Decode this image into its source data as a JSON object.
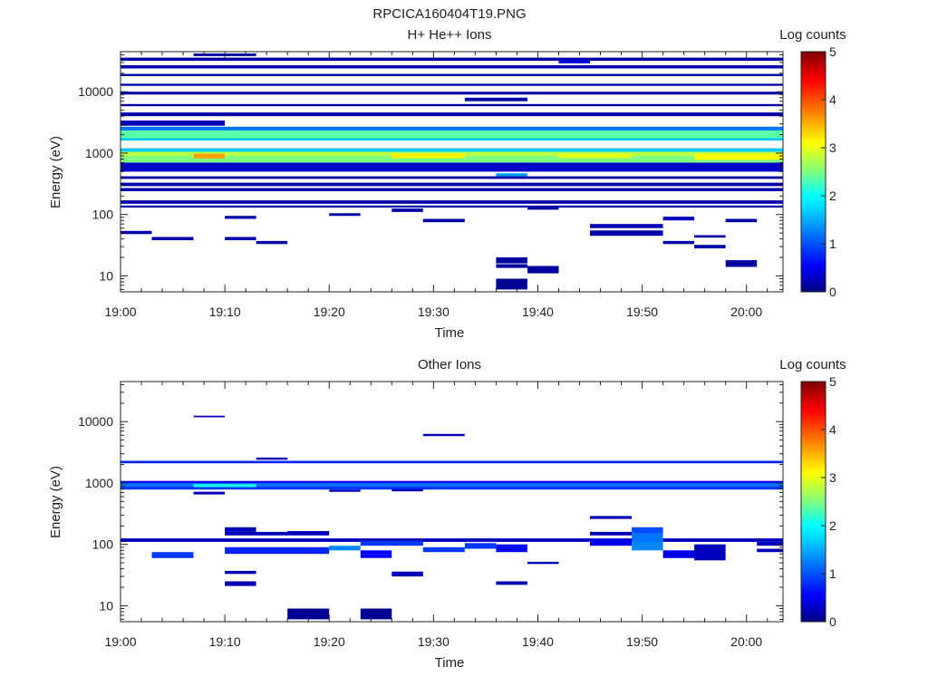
{
  "figure_title": "RPCICA160404T19.PNG",
  "colormap": {
    "stops": [
      "#00007f",
      "#0000ff",
      "#007fff",
      "#00ffff",
      "#7fff7f",
      "#ffff00",
      "#ff7f00",
      "#ff0000",
      "#7f0000"
    ]
  },
  "chart_data": [
    {
      "type": "heatmap",
      "title": "H+ He++ Ions",
      "xlabel": "Time",
      "ylabel": "Energy (eV)",
      "x_ticks": [
        "19:00",
        "19:10",
        "19:20",
        "19:30",
        "19:40",
        "19:50",
        "20:00"
      ],
      "y_ticks": [
        "10",
        "100",
        "1000",
        "10000"
      ],
      "y_scale": "log",
      "ylim": [
        5.5,
        45000
      ],
      "colorbar": {
        "label": "Log counts",
        "ticks": [
          "0",
          "1",
          "2",
          "3",
          "4",
          "5"
        ],
        "range": [
          0,
          5
        ]
      },
      "time_bins_start": [
        "19:00",
        "19:03",
        "19:07",
        "19:10",
        "19:13",
        "19:16",
        "19:20",
        "19:23",
        "19:26",
        "19:29",
        "19:33",
        "19:36",
        "19:39",
        "19:42",
        "19:45",
        "19:49",
        "19:52",
        "19:55",
        "19:58",
        "20:01"
      ]
    },
    {
      "type": "heatmap",
      "title": "Other Ions",
      "xlabel": "Time",
      "ylabel": "Energy (eV)",
      "x_ticks": [
        "19:00",
        "19:10",
        "19:20",
        "19:30",
        "19:40",
        "19:50",
        "20:00"
      ],
      "y_ticks": [
        "10",
        "100",
        "1000",
        "10000"
      ],
      "y_scale": "log",
      "ylim": [
        5.5,
        45000
      ],
      "colorbar": {
        "label": "Log counts",
        "ticks": [
          "0",
          "1",
          "2",
          "3",
          "4",
          "5"
        ],
        "range": [
          0,
          5
        ]
      },
      "time_bins_start": [
        "19:00",
        "19:03",
        "19:07",
        "19:10",
        "19:13",
        "19:16",
        "19:20",
        "19:23",
        "19:26",
        "19:29",
        "19:33",
        "19:36",
        "19:39",
        "19:42",
        "19:45",
        "19:49",
        "19:52",
        "19:55",
        "19:58",
        "20:01"
      ]
    }
  ]
}
